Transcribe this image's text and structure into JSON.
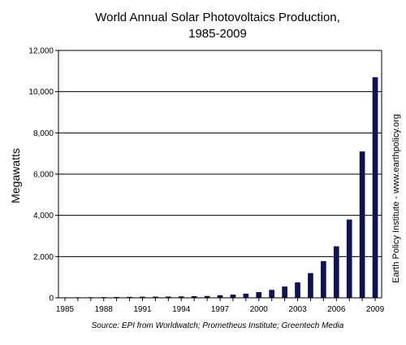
{
  "chart_data": {
    "type": "bar",
    "title_line1": "World Annual Solar Photovoltaics Production,",
    "title_line2": "1985-2009",
    "ylabel": "Megawatts",
    "xlabel": "",
    "ylim": [
      0,
      12000
    ],
    "grid": true,
    "y_ticks": [
      "0",
      "2,000",
      "4,000",
      "6,000",
      "8,000",
      "10,000",
      "12,000"
    ],
    "y_tick_values": [
      0,
      2000,
      4000,
      6000,
      8000,
      10000,
      12000
    ],
    "x_ticks": [
      "1985",
      "1988",
      "1991",
      "1994",
      "1997",
      "2000",
      "2003",
      "2006",
      "2009"
    ],
    "categories": [
      1985,
      1986,
      1987,
      1988,
      1989,
      1990,
      1991,
      1992,
      1993,
      1994,
      1995,
      1996,
      1997,
      1998,
      1999,
      2000,
      2001,
      2002,
      2003,
      2004,
      2005,
      2006,
      2007,
      2008,
      2009
    ],
    "values": [
      23,
      26,
      29,
      34,
      40,
      46,
      55,
      58,
      60,
      69,
      78,
      89,
      126,
      155,
      201,
      277,
      386,
      547,
      748,
      1199,
      1782,
      2500,
      3800,
      7100,
      10700
    ],
    "side_note": "Earth Policy Institute - www.earthpolicy.org",
    "source": "Source: EPI from Worldwatch; Prometheus Institute; Greentech Media",
    "colors": {
      "bar": "#0f1450",
      "grid": "#000000"
    }
  }
}
